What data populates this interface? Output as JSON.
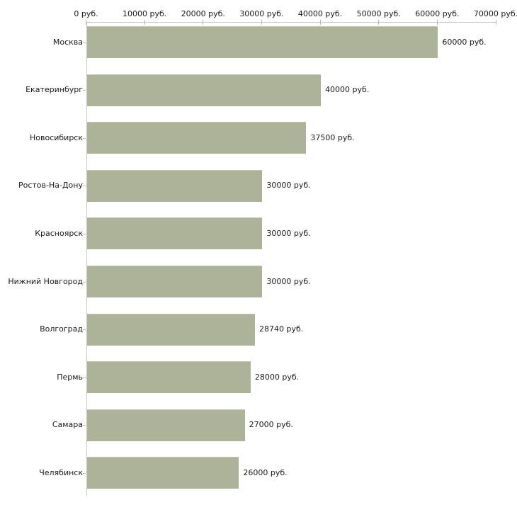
{
  "chart_data": {
    "type": "bar",
    "orientation": "horizontal",
    "categories": [
      "Москва",
      "Екатеринбург",
      "Новосибирск",
      "Ростов-На-Дону",
      "Красноярск",
      "Нижний Новгород",
      "Волгоград",
      "Пермь",
      "Самара",
      "Челябинск"
    ],
    "values": [
      60000,
      40000,
      37500,
      30000,
      30000,
      30000,
      28740,
      28000,
      27000,
      26000
    ],
    "value_labels": [
      "60000 руб.",
      "40000 руб.",
      "37500 руб.",
      "30000 руб.",
      "30000 руб.",
      "30000 руб.",
      "28740 руб.",
      "28000 руб.",
      "27000 руб.",
      "26000 руб."
    ],
    "xlabel": "",
    "ylabel": "",
    "axis": {
      "unit": "руб.",
      "min": 0,
      "max": 70000,
      "ticks": [
        0,
        10000,
        20000,
        30000,
        40000,
        50000,
        60000,
        70000
      ],
      "tick_labels": [
        "0 руб.",
        "10000 руб.",
        "20000 руб.",
        "30000 руб.",
        "40000 руб.",
        "50000 руб.",
        "60000 руб.",
        "70000 руб."
      ],
      "position": "top",
      "grid": false,
      "legend": "none"
    },
    "colors": {
      "bar": "#adb399",
      "bar_top_edge": "#c3c8ae",
      "axis_line": "#c8c8c8",
      "tick_mark": "#bdbd92",
      "text": "#1a1a1a",
      "background": "#ffffff"
    }
  }
}
